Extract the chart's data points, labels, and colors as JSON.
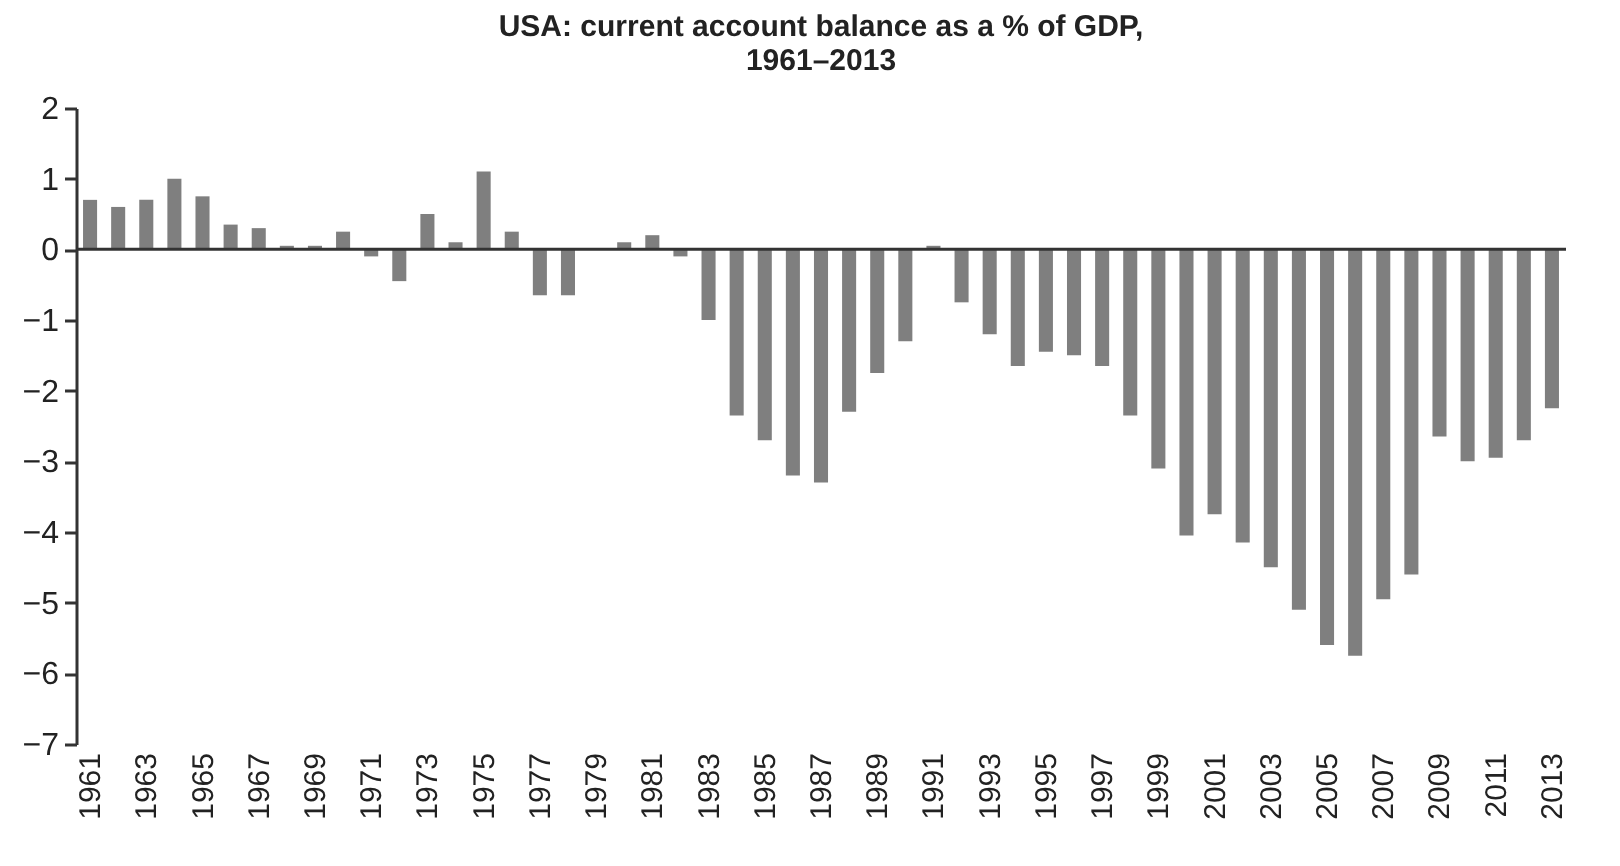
{
  "chart_data": {
    "type": "bar",
    "title": "USA: current account balance as a % of GDP,\n1961–2013",
    "categories": [
      "1961",
      null,
      "1963",
      null,
      "1965",
      null,
      "1967",
      null,
      "1969",
      null,
      "1971",
      null,
      "1973",
      null,
      "1975",
      null,
      "1977",
      null,
      "1979",
      null,
      "1981",
      null,
      "1983",
      null,
      "1985",
      null,
      "1987",
      null,
      "1989",
      null,
      "1991",
      null,
      "1993",
      null,
      "1995",
      null,
      "1997",
      null,
      "1999",
      null,
      "2001",
      null,
      "2003",
      null,
      "2005",
      null,
      "2007",
      null,
      "2009",
      null,
      "2011",
      null,
      "2013"
    ],
    "values": [
      0.7,
      0.6,
      0.7,
      1.0,
      0.75,
      0.35,
      0.3,
      0.05,
      0.05,
      0.25,
      -0.1,
      -0.45,
      0.5,
      0.1,
      1.1,
      0.25,
      -0.65,
      -0.65,
      0,
      0.1,
      0.2,
      -0.1,
      -1.0,
      -2.35,
      -2.7,
      -3.2,
      -3.3,
      -2.3,
      -1.75,
      -1.3,
      0.05,
      -0.75,
      -1.2,
      -1.65,
      -1.45,
      -1.5,
      -1.65,
      -2.35,
      -3.1,
      -4.05,
      -3.75,
      -4.15,
      -4.5,
      -5.1,
      -5.6,
      -5.75,
      -4.95,
      -4.6,
      -2.65,
      -3.0,
      -2.95,
      -2.7,
      -2.25
    ],
    "color": "#7f7f7f",
    "ylim": [
      -7,
      2
    ],
    "yticks": [
      -7,
      -6,
      -5,
      -4,
      -3,
      -2,
      -1,
      0,
      1,
      2
    ],
    "grid": false,
    "ref_lines": [
      {
        "axis": "y",
        "value": 0,
        "color": "#333333"
      }
    ]
  }
}
